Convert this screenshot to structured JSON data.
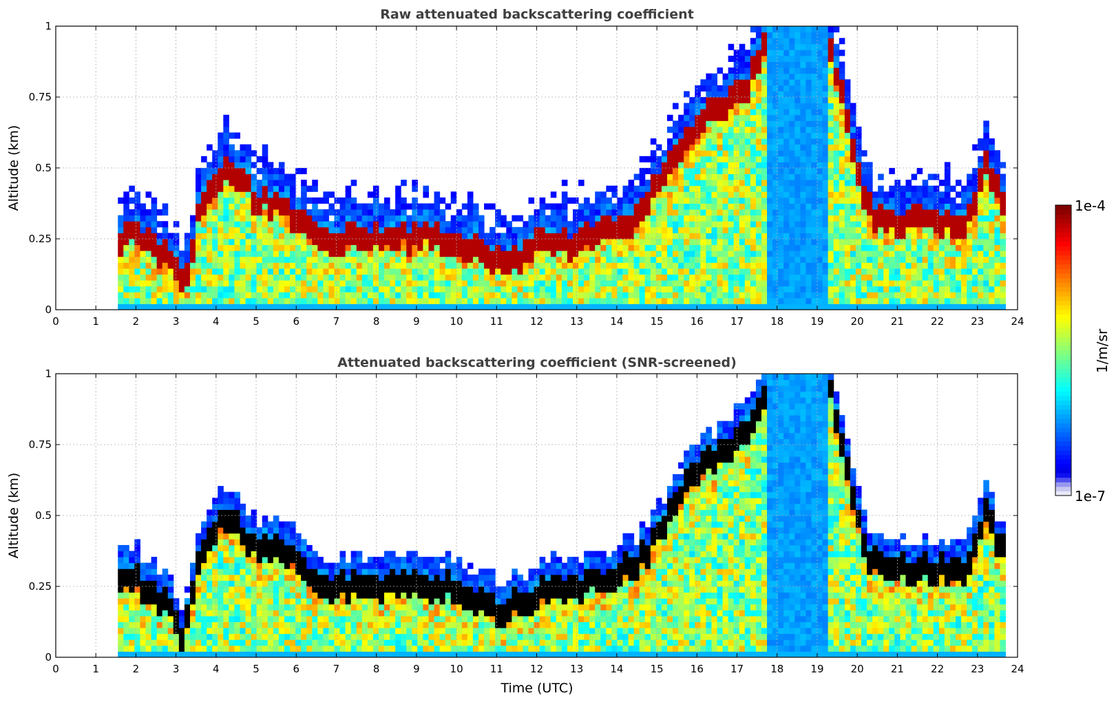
{
  "chart_data": [
    {
      "type": "heatmap",
      "title": "Raw attenuated backscattering coefficient",
      "xlabel": "",
      "ylabel": "Altitude (km)",
      "xlim": [
        0,
        24
      ],
      "ylim": [
        0,
        1
      ],
      "x_ticks": [
        "0",
        "1",
        "2",
        "3",
        "4",
        "5",
        "6",
        "7",
        "8",
        "9",
        "10",
        "11",
        "12",
        "13",
        "14",
        "15",
        "16",
        "17",
        "18",
        "19",
        "20",
        "21",
        "22",
        "23",
        "24"
      ],
      "y_ticks": [
        "0",
        "0.25",
        "0.5",
        "0.75",
        "1"
      ],
      "grid": true,
      "data_start_hour": 1.55,
      "data_end_hour": 23.7,
      "screened": false,
      "layer_profile": {
        "hours": [
          1.6,
          2.0,
          2.5,
          2.9,
          3.2,
          3.6,
          4.3,
          5.0,
          5.8,
          6.5,
          8.0,
          9.5,
          10.5,
          11.2,
          12.0,
          13.0,
          13.8,
          14.5,
          15.2,
          15.8,
          16.5,
          17.2,
          17.6,
          18.0,
          19.2,
          19.6,
          20.2,
          21.0,
          22.0,
          22.7,
          23.2,
          23.7
        ],
        "base_km": [
          0.25,
          0.27,
          0.2,
          0.16,
          0.05,
          0.35,
          0.5,
          0.38,
          0.35,
          0.24,
          0.25,
          0.25,
          0.2,
          0.15,
          0.22,
          0.23,
          0.27,
          0.32,
          0.45,
          0.62,
          0.7,
          0.77,
          0.9,
          1.0,
          1.0,
          0.75,
          0.35,
          0.3,
          0.3,
          0.28,
          0.5,
          0.35
        ]
      }
    },
    {
      "type": "heatmap",
      "title": "Attenuated backscattering coefficient (SNR-screened)",
      "xlabel": "Time (UTC)",
      "ylabel": "Altitude (km)",
      "xlim": [
        0,
        24
      ],
      "ylim": [
        0,
        1
      ],
      "x_ticks": [
        "0",
        "1",
        "2",
        "3",
        "4",
        "5",
        "6",
        "7",
        "8",
        "9",
        "10",
        "11",
        "12",
        "13",
        "14",
        "15",
        "16",
        "17",
        "18",
        "19",
        "20",
        "21",
        "22",
        "23",
        "24"
      ],
      "y_ticks": [
        "0",
        "0.25",
        "0.5",
        "0.75",
        "1"
      ],
      "grid": true,
      "data_start_hour": 1.55,
      "data_end_hour": 23.7,
      "screened": true
    }
  ],
  "colorbar": {
    "label": "1/m/sr",
    "max_label": "1e-4",
    "min_label": "1e-7",
    "colormap": "jet",
    "low_colors": [
      "#e8e8f8",
      "#c8c8f0",
      "#9898f0",
      "#5050f0",
      "#1010f0"
    ]
  }
}
